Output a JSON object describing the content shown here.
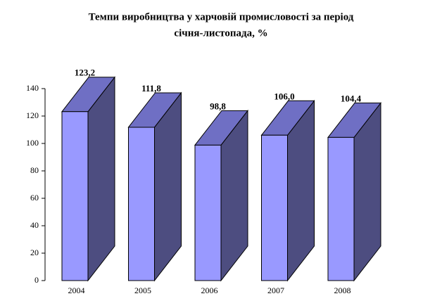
{
  "chart_data": {
    "type": "bar3d",
    "title": [
      "Темпи виробництва у харчовій промисловості за період",
      "січня-листопада, %"
    ],
    "categories": [
      "2004",
      "2005",
      "2006",
      "2007",
      "2008"
    ],
    "values": [
      123.2,
      111.8,
      98.8,
      106.0,
      104.4
    ],
    "value_labels": [
      "123,2",
      "111,8",
      "98,8",
      "106,0",
      "104,4"
    ],
    "color": "#9999ff",
    "ylim": [
      0,
      140
    ],
    "yticks": [
      0,
      20,
      40,
      60,
      80,
      100,
      120,
      140
    ]
  }
}
